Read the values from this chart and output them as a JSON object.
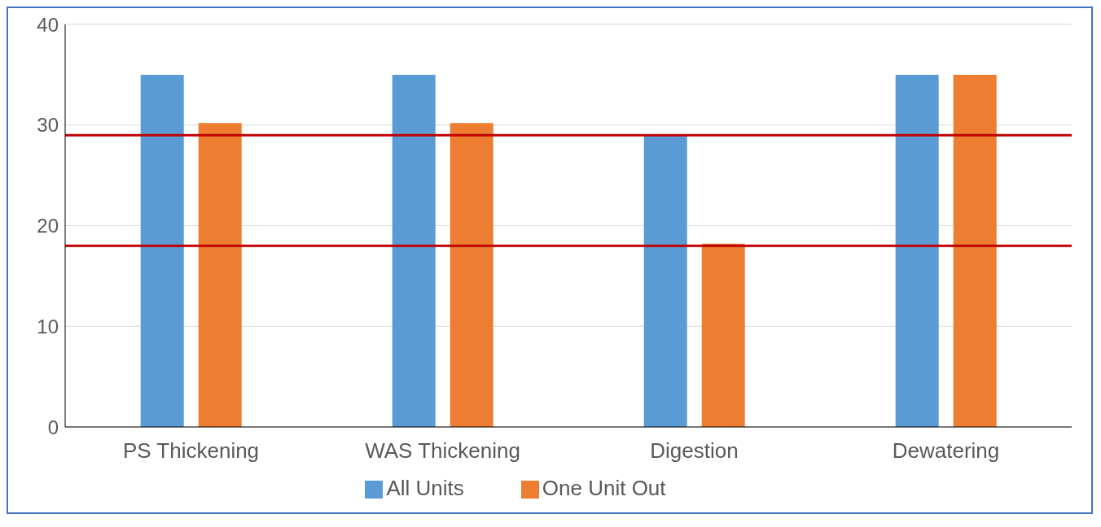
{
  "chart_data": {
    "type": "bar",
    "categories": [
      "PS Thickening",
      "WAS Thickening",
      "Digestion",
      "Dewatering"
    ],
    "series": [
      {
        "name": "All Units",
        "color": "#5b9bd5",
        "values": [
          35,
          35,
          29,
          35
        ]
      },
      {
        "name": "One Unit Out",
        "color": "#ed7d31",
        "values": [
          30.2,
          30.2,
          18.2,
          35
        ]
      }
    ],
    "ylim": [
      0,
      40
    ],
    "yticks": [
      0,
      10,
      20,
      30,
      40
    ],
    "grid": "y",
    "legend": "bottom",
    "ref_lines": [
      {
        "axis": "y",
        "value": 29,
        "color": "#c00000"
      },
      {
        "axis": "y",
        "value": 18,
        "color": "#c00000"
      }
    ]
  }
}
